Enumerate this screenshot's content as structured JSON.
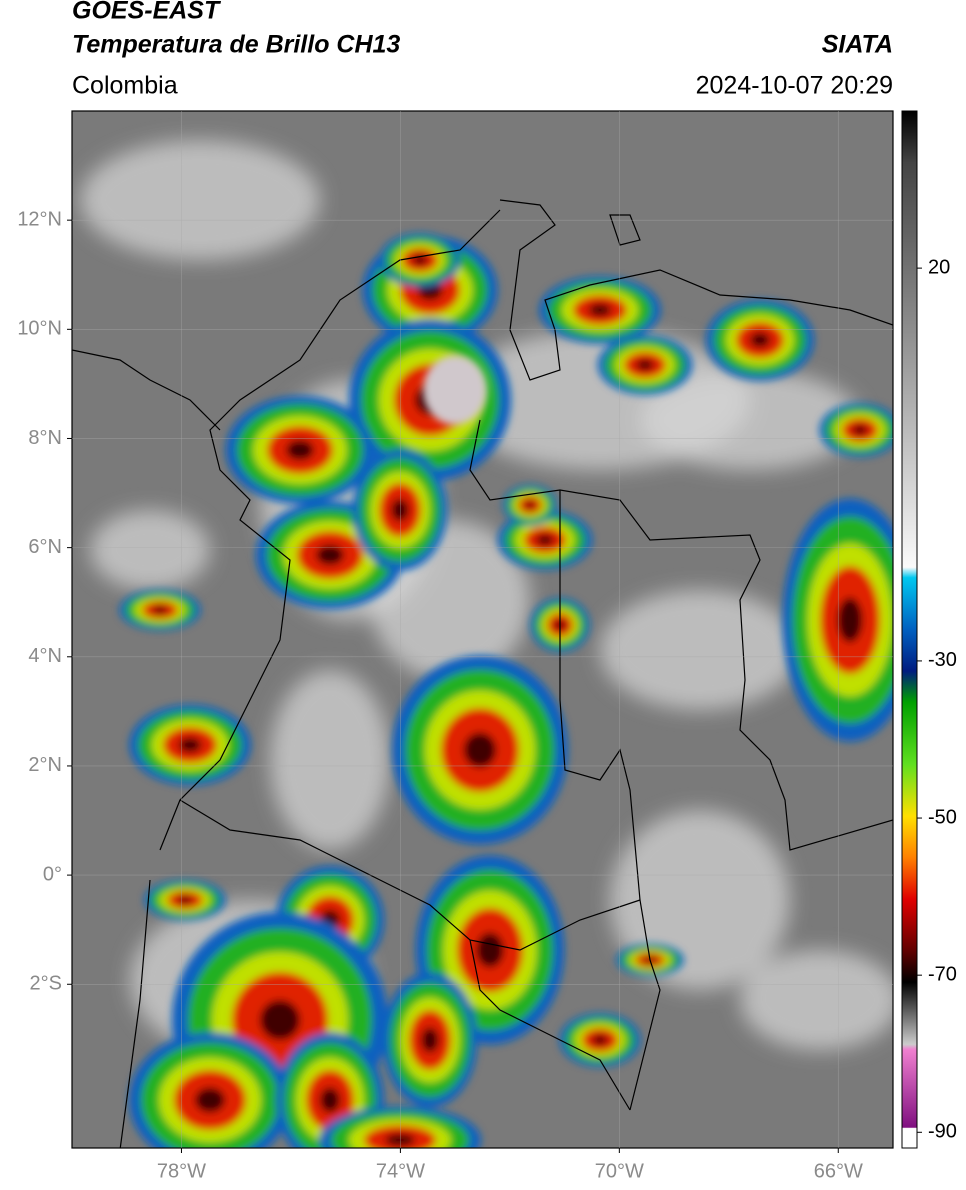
{
  "header": {
    "title": "GOES-EAST",
    "subtitle": "Temperatura de Brillo CH13",
    "source": "SIATA",
    "region": "Colombia",
    "datetime": "2024-10-07 20:29"
  },
  "map": {
    "xlim": [
      -80,
      -65
    ],
    "ylim": [
      -5,
      14
    ],
    "xticks": [
      {
        "value": -78,
        "label": "78°W"
      },
      {
        "value": -74,
        "label": "74°W"
      },
      {
        "value": -70,
        "label": "70°W"
      },
      {
        "value": -66,
        "label": "66°W"
      }
    ],
    "yticks": [
      {
        "value": 12,
        "label": "12°N"
      },
      {
        "value": 10,
        "label": "10°N"
      },
      {
        "value": 8,
        "label": "8°N"
      },
      {
        "value": 6,
        "label": "6°N"
      },
      {
        "value": 4,
        "label": "4°N"
      },
      {
        "value": 2,
        "label": "2°N"
      },
      {
        "value": 0,
        "label": "0°"
      },
      {
        "value": -2,
        "label": "2°S"
      }
    ],
    "grid": true
  },
  "colorbar": {
    "lim": [
      -92,
      40
    ],
    "ticks": [
      20,
      -30,
      -50,
      -70,
      -90
    ]
  }
}
